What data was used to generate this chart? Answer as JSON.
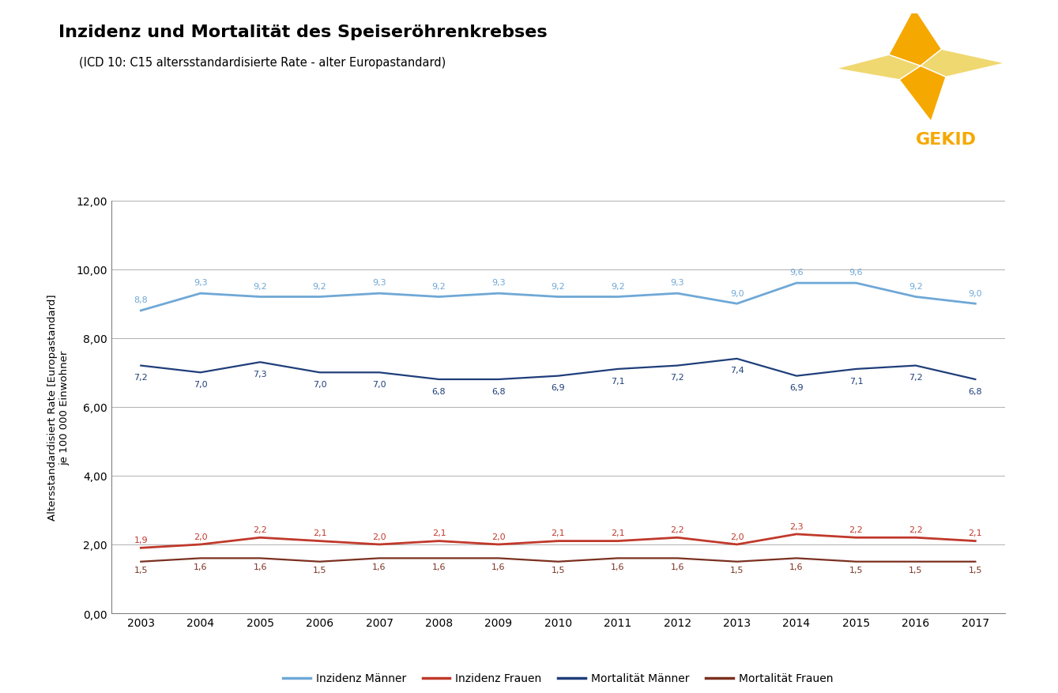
{
  "title": "Inzidenz und Mortalität des Speiseröhrenkrebses",
  "subtitle": "(ICD 10: C15 altersstandardisierte Rate - alter Europastandard)",
  "ylabel": "Altersstandardisiert Rate [Europastandard]\nje 100 000 Einwohner",
  "years": [
    2003,
    2004,
    2005,
    2006,
    2007,
    2008,
    2009,
    2010,
    2011,
    2012,
    2013,
    2014,
    2015,
    2016,
    2017
  ],
  "inzidenz_maenner": [
    8.8,
    9.3,
    9.2,
    9.2,
    9.3,
    9.2,
    9.3,
    9.2,
    9.2,
    9.3,
    9.0,
    9.6,
    9.6,
    9.2,
    9.0
  ],
  "inzidenz_frauen": [
    1.9,
    2.0,
    2.2,
    2.1,
    2.0,
    2.1,
    2.0,
    2.1,
    2.1,
    2.2,
    2.0,
    2.3,
    2.2,
    2.2,
    2.1
  ],
  "mortalitaet_maenner": [
    7.2,
    7.0,
    7.3,
    7.0,
    7.0,
    6.8,
    6.8,
    6.9,
    7.1,
    7.2,
    7.4,
    6.9,
    7.1,
    7.2,
    6.8
  ],
  "mortalitaet_frauen": [
    1.5,
    1.6,
    1.6,
    1.5,
    1.6,
    1.6,
    1.6,
    1.5,
    1.6,
    1.6,
    1.5,
    1.6,
    1.5,
    1.5,
    1.5
  ],
  "color_inzidenz_maenner": "#6fa8d6",
  "color_inzidenz_frauen": "#c0392b",
  "color_mortalitaet_maenner": "#1f3e7a",
  "color_mortalitaet_frauen": "#7b3020",
  "ylim": [
    0,
    12
  ],
  "yticks": [
    0.0,
    2.0,
    4.0,
    6.0,
    8.0,
    10.0,
    12.0
  ],
  "ytick_labels": [
    "0,00",
    "2,00",
    "4,00",
    "6,00",
    "8,00",
    "10,00",
    "12,00"
  ],
  "background_color": "#ffffff",
  "grid_color": "#b0b0b0",
  "legend_labels": [
    "Inzidenz Männer",
    "Inzidenz Frauen",
    "Mortalität Männer",
    "Mortalität Frauen"
  ],
  "orange": "#F5A800",
  "logo_text_color": "#F5A800"
}
